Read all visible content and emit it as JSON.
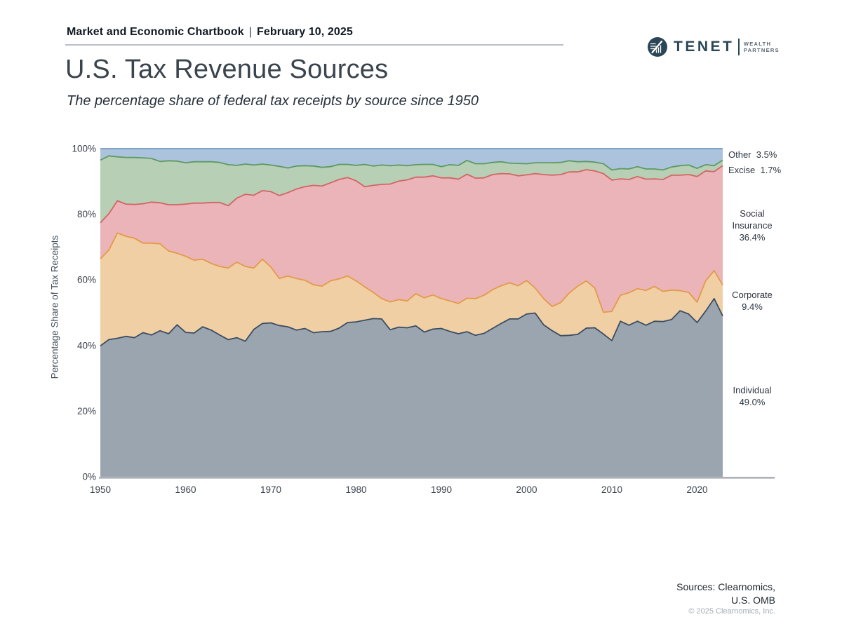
{
  "header": {
    "title": "Market and Economic Chartbook",
    "separator": "|",
    "date": "February 10, 2025"
  },
  "logo": {
    "name": "TENET",
    "tagline_line1": "WEALTH",
    "tagline_line2": "PARTNERS",
    "brand_color": "#2b4756"
  },
  "page_title": "U.S. Tax Revenue Sources",
  "subtitle": "The percentage share of federal tax receipts by source since 1950",
  "footer": {
    "sources_line1": "Sources: Clearnomics,",
    "sources_line2": "U.S. OMB",
    "copyright": "© 2025 Clearnomics, Inc."
  },
  "chart_data": {
    "type": "area",
    "stacked": true,
    "title": "U.S. Tax Revenue Sources",
    "xlabel": "",
    "ylabel": "Percentage Share of Tax Receipts",
    "x_range": [
      1950,
      2023
    ],
    "x_step": 1,
    "ylim": [
      0,
      100
    ],
    "x_ticks": [
      1950,
      1960,
      1970,
      1980,
      1990,
      2000,
      2010,
      2020
    ],
    "y_ticks": [
      0,
      20,
      40,
      60,
      80,
      100
    ],
    "y_tick_suffix": "%",
    "grid": false,
    "legend_position": "right-annotations",
    "axis_color": "#939ba3",
    "series": [
      {
        "name": "Individual",
        "fill": "#9aa5b0",
        "stroke": "#3b4d61",
        "values": [
          39.9,
          41.8,
          42.2,
          42.8,
          42.4,
          43.9,
          43.2,
          44.5,
          43.6,
          46.3,
          44.0,
          43.8,
          45.7,
          44.7,
          43.2,
          41.8,
          42.4,
          41.3,
          44.9,
          46.7,
          46.9,
          46.1,
          45.7,
          44.7,
          45.2,
          43.9,
          44.2,
          44.3,
          45.3,
          47.0,
          47.2,
          47.7,
          48.2,
          48.1,
          44.8,
          45.6,
          45.4,
          46.0,
          44.1,
          45.0,
          45.2,
          44.3,
          43.6,
          44.2,
          43.1,
          43.7,
          45.2,
          46.7,
          48.1,
          48.1,
          49.6,
          49.9,
          46.3,
          44.5,
          43.0,
          43.1,
          43.4,
          45.3,
          45.4,
          43.5,
          41.5,
          47.4,
          46.2,
          47.4,
          46.2,
          47.4,
          47.3,
          47.9,
          50.6,
          49.6,
          47.0,
          50.5,
          54.3,
          49.0
        ]
      },
      {
        "name": "Corporate",
        "fill": "#f1cfa4",
        "stroke": "#e29b49",
        "values": [
          26.5,
          27.3,
          32.1,
          30.5,
          30.3,
          27.3,
          28.0,
          26.5,
          25.2,
          21.8,
          23.2,
          22.2,
          20.6,
          20.3,
          20.9,
          21.8,
          23.0,
          22.8,
          18.7,
          19.6,
          17.0,
          14.3,
          15.5,
          15.7,
          14.7,
          14.6,
          13.9,
          15.4,
          15.0,
          14.2,
          12.5,
          10.2,
          8.0,
          6.2,
          8.5,
          8.4,
          8.2,
          9.8,
          10.4,
          10.4,
          9.1,
          9.3,
          9.2,
          10.2,
          11.2,
          11.6,
          11.8,
          11.5,
          11.0,
          10.1,
          10.2,
          7.6,
          8.0,
          7.4,
          10.1,
          12.9,
          14.7,
          14.4,
          12.1,
          6.6,
          8.9,
          7.9,
          9.9,
          9.9,
          10.6,
          10.6,
          9.2,
          9.0,
          6.1,
          6.6,
          6.2,
          9.2,
          8.5,
          9.4
        ]
      },
      {
        "name": "Social Insurance",
        "fill": "#ebb4b8",
        "stroke": "#d26565",
        "values": [
          11.0,
          11.1,
          9.8,
          9.8,
          10.3,
          12.0,
          12.5,
          12.5,
          14.1,
          14.8,
          15.9,
          17.4,
          17.1,
          18.6,
          19.5,
          19.0,
          19.5,
          22.0,
          22.2,
          20.9,
          23.0,
          25.3,
          25.4,
          27.3,
          28.5,
          30.3,
          30.5,
          29.9,
          30.3,
          30.0,
          30.5,
          30.5,
          32.6,
          34.8,
          35.9,
          36.1,
          36.9,
          35.5,
          36.8,
          36.3,
          36.8,
          37.5,
          37.9,
          37.8,
          36.7,
          35.8,
          35.1,
          34.2,
          33.2,
          33.5,
          32.2,
          34.9,
          37.8,
          40.0,
          39.0,
          36.9,
          34.8,
          33.9,
          35.7,
          42.3,
          40.0,
          35.5,
          34.5,
          34.2,
          33.9,
          32.8,
          34.1,
          35.0,
          35.2,
          35.9,
          38.3,
          33.5,
          30.2,
          36.4
        ]
      },
      {
        "name": "Excise",
        "fill": "#b7cfb4",
        "stroke": "#5e9a62",
        "values": [
          19.1,
          17.6,
          13.4,
          14.2,
          14.3,
          14.0,
          13.3,
          12.6,
          13.4,
          13.3,
          12.6,
          12.6,
          12.6,
          12.4,
          12.2,
          12.5,
          10.0,
          9.2,
          9.2,
          8.1,
          8.1,
          8.9,
          7.5,
          7.0,
          6.4,
          5.9,
          5.7,
          4.9,
          4.6,
          4.0,
          4.7,
          6.8,
          5.9,
          5.9,
          5.6,
          4.9,
          4.3,
          3.8,
          3.9,
          3.5,
          3.4,
          4.0,
          4.2,
          4.2,
          4.4,
          4.3,
          3.7,
          3.6,
          3.3,
          3.8,
          3.4,
          3.3,
          3.6,
          3.8,
          3.7,
          3.4,
          3.1,
          2.5,
          2.7,
          3.0,
          3.1,
          3.1,
          3.2,
          3.0,
          3.1,
          3.0,
          2.9,
          2.5,
          2.9,
          2.9,
          2.5,
          1.9,
          1.8,
          1.7
        ]
      },
      {
        "name": "Other",
        "fill": "#abc3dd",
        "stroke": "#7699c0",
        "is_remainder_to_100": true
      }
    ],
    "annotations": [
      {
        "series": "Other",
        "label_lines": [
          "Other"
        ],
        "value": "3.5%",
        "layout": "inline"
      },
      {
        "series": "Excise",
        "label_lines": [
          "Excise"
        ],
        "value": "1.7%",
        "layout": "inline"
      },
      {
        "series": "Social Insurance",
        "label_lines": [
          "Social",
          "Insurance"
        ],
        "value": "36.4%",
        "layout": "stacked"
      },
      {
        "series": "Corporate",
        "label_lines": [
          "Corporate"
        ],
        "value": "9.4%",
        "layout": "stacked"
      },
      {
        "series": "Individual",
        "label_lines": [
          "Individual"
        ],
        "value": "49.0%",
        "layout": "stacked"
      }
    ],
    "latest_values": {
      "Individual": 49.0,
      "Corporate": 9.4,
      "Social Insurance": 36.4,
      "Excise": 1.7,
      "Other": 3.5
    }
  }
}
